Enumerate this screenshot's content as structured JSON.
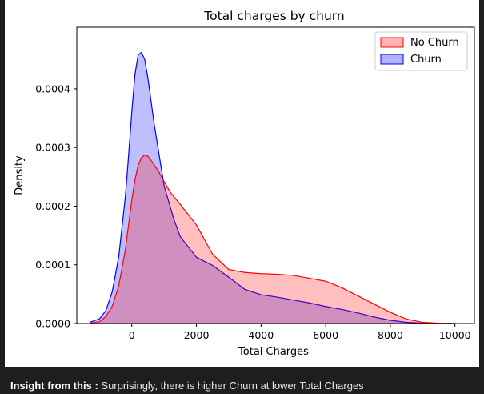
{
  "chart_data": {
    "type": "area",
    "title": "Total charges by churn",
    "xlabel": "Total Charges",
    "ylabel": "Density",
    "xlim": [
      -1700,
      10600
    ],
    "ylim": [
      0,
      0.000505
    ],
    "xticks": [
      0,
      2000,
      4000,
      6000,
      8000,
      10000
    ],
    "xtick_labels": [
      "0",
      "2000",
      "4000",
      "6000",
      "8000",
      "10000"
    ],
    "yticks": [
      0,
      0.0001,
      0.0002,
      0.0003,
      0.0004
    ],
    "ytick_labels": [
      "0.0000",
      "0.0001",
      "0.0002",
      "0.0003",
      "0.0004"
    ],
    "grid": false,
    "legend_position": "top-right",
    "series": [
      {
        "name": "No Churn",
        "color": "#ff0000",
        "x": [
          -1300,
          -1000,
          -800,
          -600,
          -400,
          -200,
          0,
          100,
          200,
          300,
          400,
          500,
          600,
          800,
          1000,
          1200,
          1500,
          2000,
          2500,
          3000,
          3500,
          4000,
          4500,
          5000,
          5500,
          6000,
          6500,
          7000,
          7500,
          8000,
          8500,
          9000,
          9500,
          10000
        ],
        "values": [
          5e-07,
          3e-06,
          1.2e-05,
          3e-05,
          6.5e-05,
          0.000125,
          0.00021,
          0.000245,
          0.00027,
          0.000283,
          0.000287,
          0.000285,
          0.000278,
          0.000262,
          0.000242,
          0.000223,
          0.000203,
          0.000168,
          0.000118,
          9.2e-05,
          8.7e-05,
          8.5e-05,
          8.4e-05,
          8.2e-05,
          7.7e-05,
          7.2e-05,
          6.1e-05,
          4.7e-05,
          3.3e-05,
          1.9e-05,
          7.5e-06,
          2e-06,
          5e-07,
          2e-07
        ]
      },
      {
        "name": "Churn",
        "color": "#0000ff",
        "x": [
          -1300,
          -1000,
          -800,
          -600,
          -400,
          -200,
          -100,
          0,
          100,
          200,
          300,
          400,
          500,
          700,
          1000,
          1300,
          1500,
          2000,
          2500,
          3000,
          3500,
          4000,
          4500,
          5000,
          5500,
          6000,
          6500,
          7000,
          7500,
          8000,
          8500,
          9000,
          9500,
          10000
        ],
        "values": [
          2e-06,
          8e-06,
          2.2e-05,
          5.5e-05,
          0.000115,
          0.000215,
          0.000285,
          0.00036,
          0.000425,
          0.000458,
          0.000462,
          0.00045,
          0.000418,
          0.000338,
          0.000235,
          0.000178,
          0.000148,
          0.000113,
          9.9e-05,
          7.9e-05,
          5.8e-05,
          4.9e-05,
          4.5e-05,
          4e-05,
          3.5e-05,
          2.9e-05,
          2.4e-05,
          1.8e-05,
          1.1e-05,
          5.5e-06,
          2e-06,
          6e-07,
          2e-07,
          1e-07
        ]
      }
    ]
  },
  "insight": {
    "label": "Insight from this :",
    "text": " Surprisingly, there is higher Churn at lower Total Charges"
  }
}
